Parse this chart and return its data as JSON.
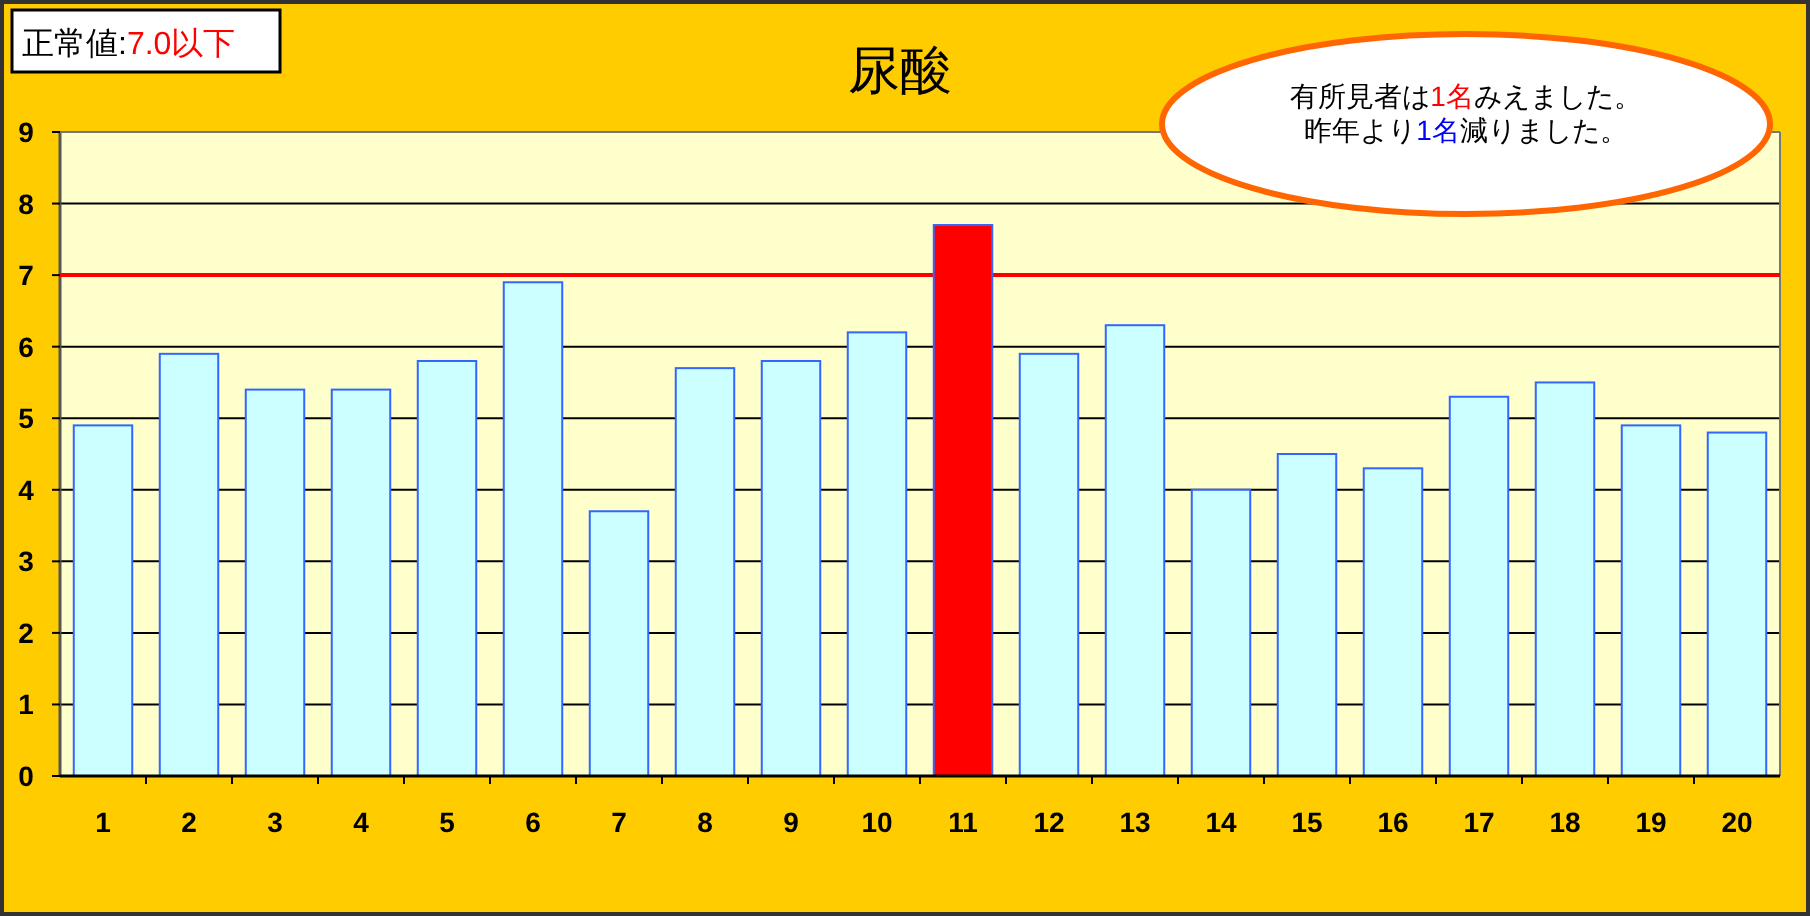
{
  "chart_data": {
    "type": "bar",
    "title": "尿酸",
    "categories": [
      "1",
      "2",
      "3",
      "4",
      "5",
      "6",
      "7",
      "8",
      "9",
      "10",
      "11",
      "12",
      "13",
      "14",
      "15",
      "16",
      "17",
      "18",
      "19",
      "20"
    ],
    "values": [
      4.9,
      5.9,
      5.4,
      5.4,
      5.8,
      6.9,
      3.7,
      5.7,
      5.8,
      6.2,
      7.7,
      5.9,
      6.3,
      4.0,
      4.5,
      4.3,
      5.3,
      5.5,
      4.9,
      4.8
    ],
    "colors": [
      "#ccffff",
      "#ccffff",
      "#ccffff",
      "#ccffff",
      "#ccffff",
      "#ccffff",
      "#ccffff",
      "#ccffff",
      "#ccffff",
      "#ccffff",
      "#ff0000",
      "#ccffff",
      "#ccffff",
      "#ccffff",
      "#ccffff",
      "#ccffff",
      "#ccffff",
      "#ccffff",
      "#ccffff",
      "#ccffff"
    ],
    "ylim": [
      0,
      9
    ],
    "yticks": [
      0,
      1,
      2,
      3,
      4,
      5,
      6,
      7,
      8,
      9
    ],
    "grid": "y",
    "ref_lines": [
      {
        "axis": "y",
        "value": 7,
        "color": "#ff0000"
      }
    ],
    "annotations": [
      "正常値:**7.0以下**",
      "有所見者は**1名**みえました。",
      "昨年より**1名**減りました。"
    ]
  }
}
